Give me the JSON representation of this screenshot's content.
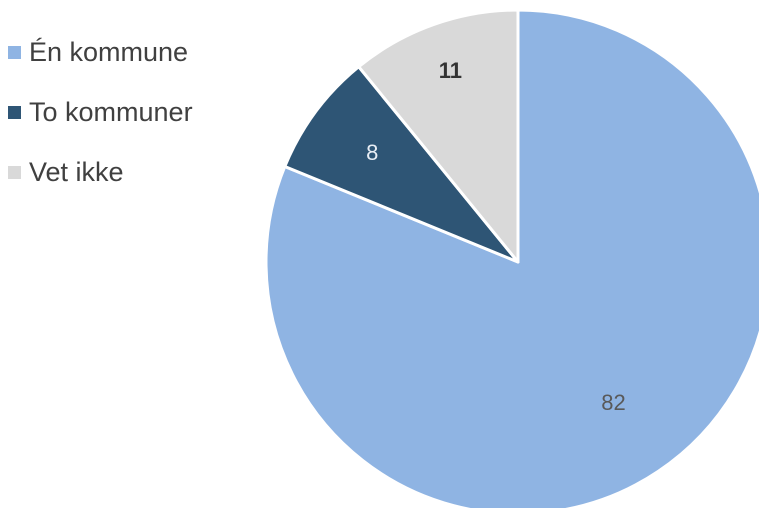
{
  "chart_data": {
    "type": "pie",
    "title": "",
    "start_angle_deg": 0,
    "direction": "clockwise",
    "legend_position": "top-left",
    "slices": [
      {
        "name": "Én kommune",
        "value": 82,
        "label": "82",
        "color": "#8FB4E3",
        "label_color": "#595959",
        "label_weight": "normal"
      },
      {
        "name": "To kommuner",
        "value": 8,
        "label": "8",
        "color": "#2E5575",
        "label_color": "#E8EEF5",
        "label_weight": "normal"
      },
      {
        "name": "Vet ikke",
        "value": 11,
        "label": "11",
        "color": "#D9D9D9",
        "label_color": "#333333",
        "label_weight": "bold"
      }
    ]
  }
}
